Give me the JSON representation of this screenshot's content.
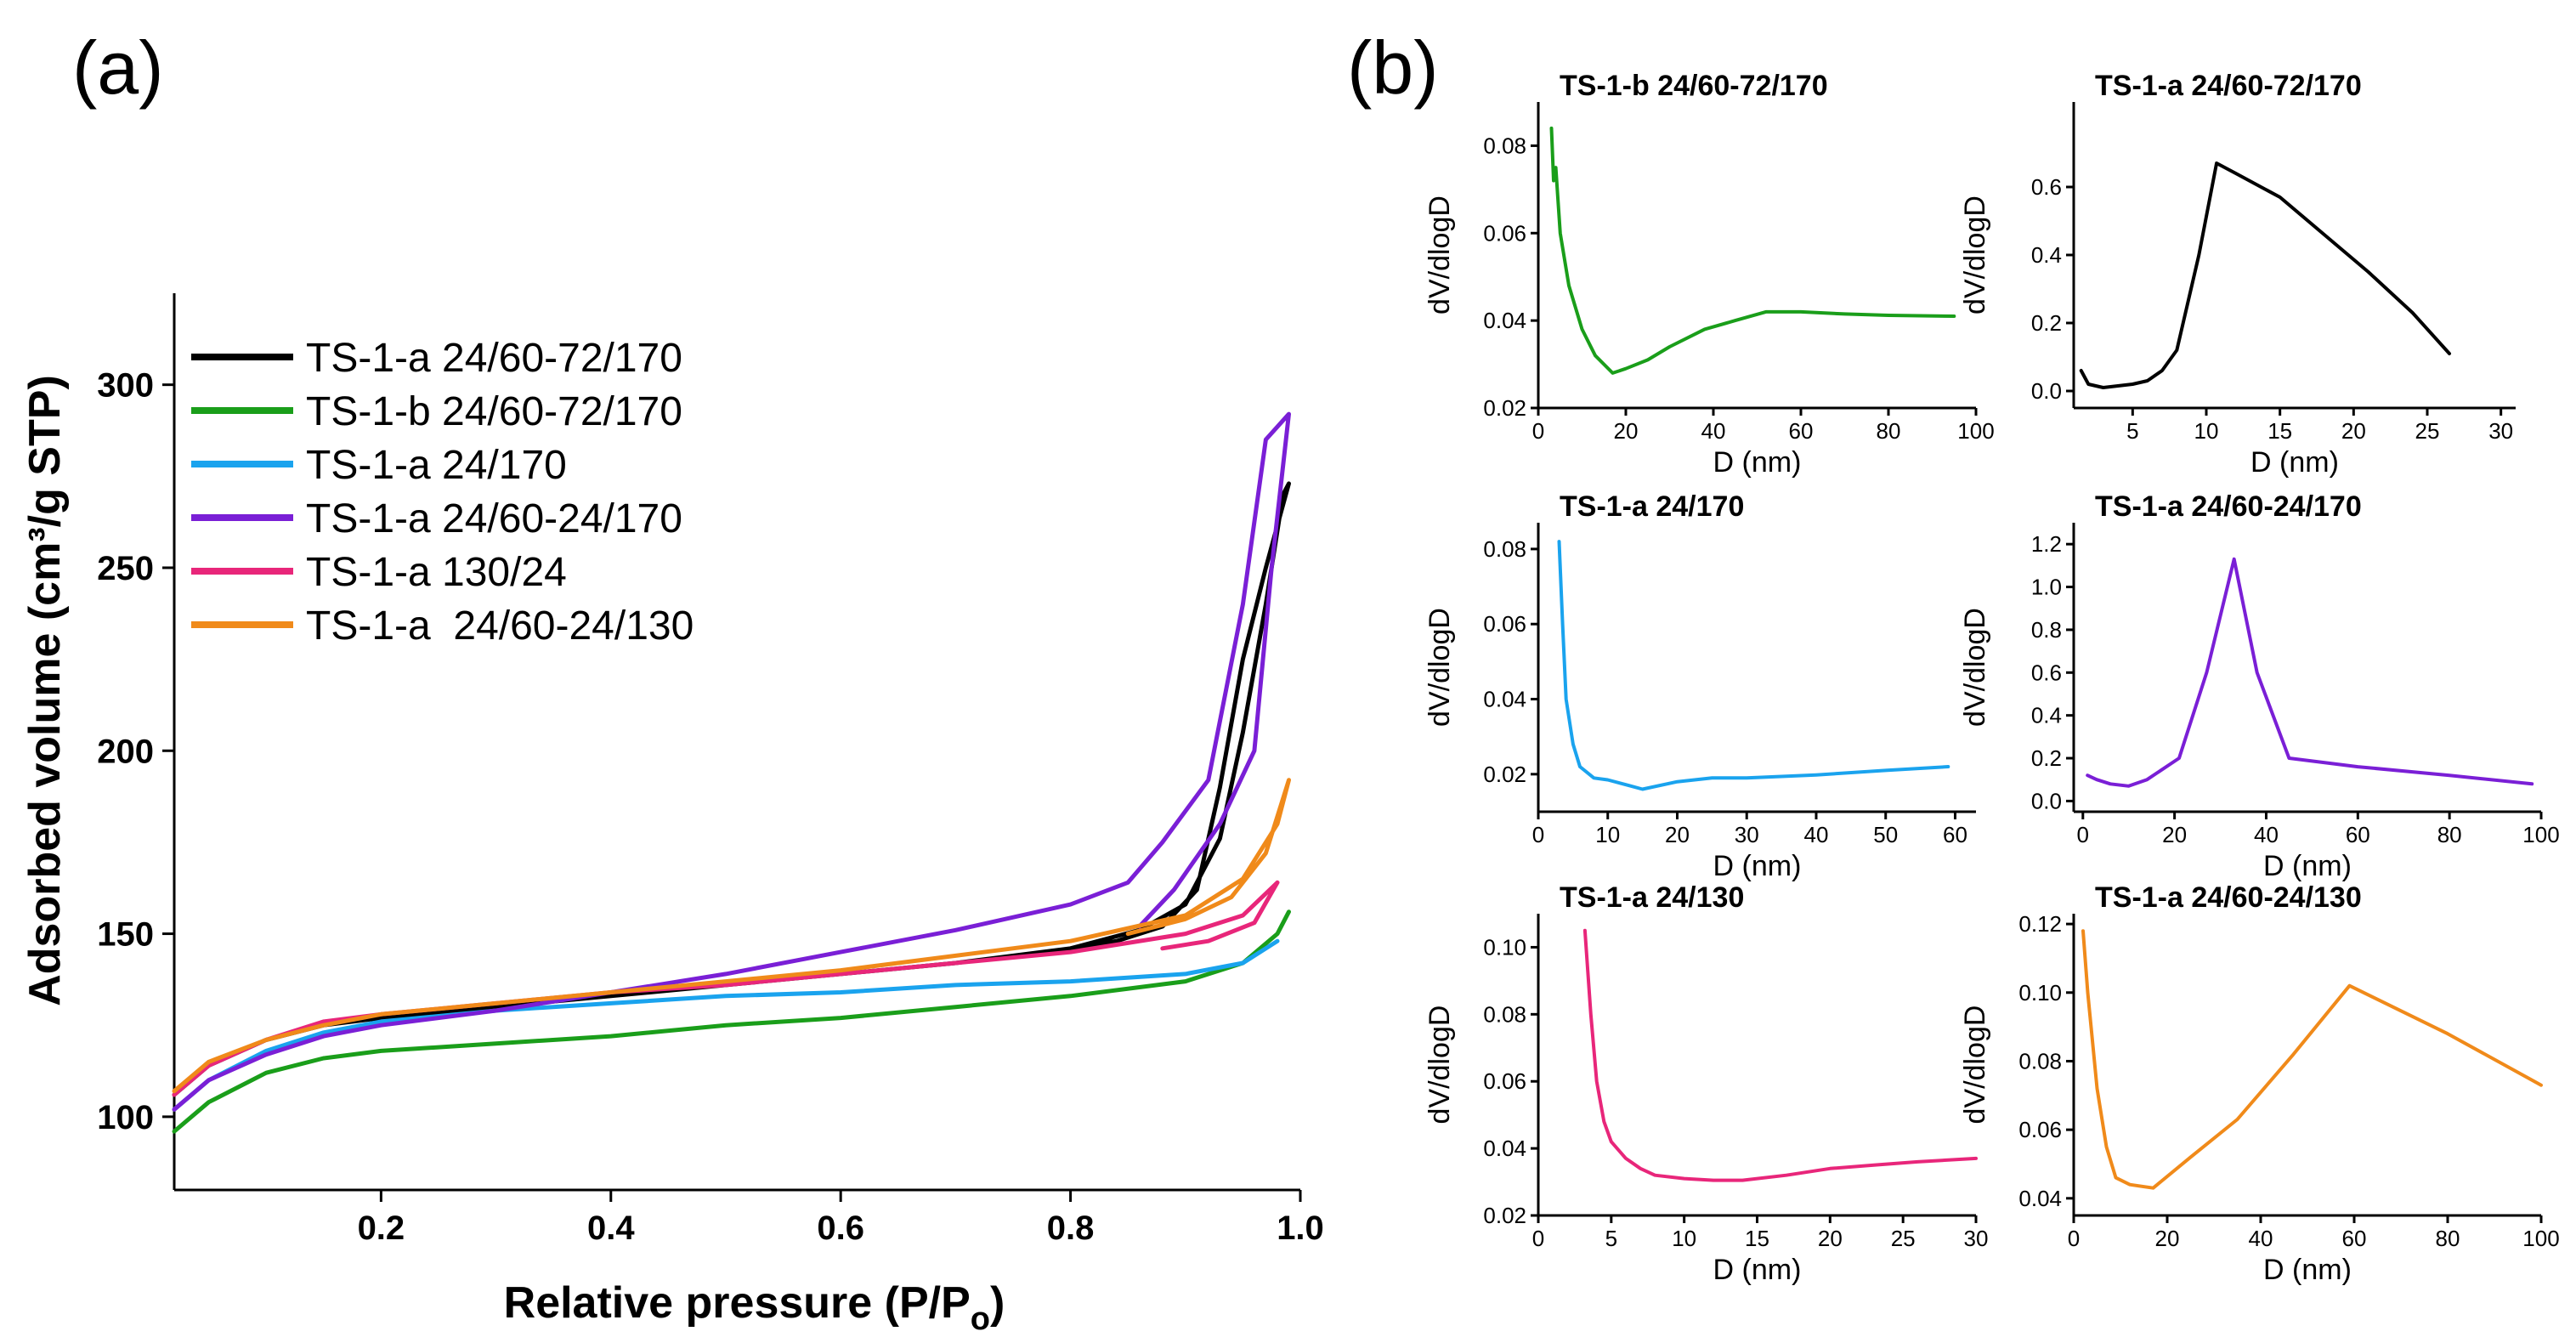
{
  "figure": {
    "panel_a_label": "(a)",
    "panel_b_label": "(b)"
  },
  "colors": {
    "TS-1-a 24/60-72/170": "#000000",
    "TS-1-b 24/60-72/170": "#1a9e1a",
    "TS-1-a 24/170": "#1aa3ee",
    "TS-1-a 24/60-24/170": "#7a1fd6",
    "TS-1-a 130/24": "#e8267a",
    "TS-1-a 24/60-24/130": "#f08a1a"
  },
  "chart_data": [
    {
      "id": "isotherms",
      "type": "line",
      "title": "",
      "xlabel": "Relative pressure (P/P",
      "xlabel_sub": "o",
      "xlabel_close": ")",
      "ylabel": "Adsorbed volume (cm³/g STP)",
      "xlim": [
        0.02,
        1.0
      ],
      "ylim": [
        80,
        325
      ],
      "xticks": [
        0.2,
        0.4,
        0.6,
        0.8,
        1.0
      ],
      "xtick_labels": [
        "0.2",
        "0.4",
        "0.6",
        "0.8",
        "1.0"
      ],
      "yticks": [
        100,
        150,
        200,
        250,
        300
      ],
      "ytick_labels": [
        "100",
        "150",
        "200",
        "250",
        "300"
      ],
      "legend_position": "top-left",
      "series": [
        {
          "name": "TS-1-a 24/60-72/170",
          "color": "#000000",
          "points": [
            [
              0.02,
              106
            ],
            [
              0.05,
              114
            ],
            [
              0.1,
              121
            ],
            [
              0.15,
              125
            ],
            [
              0.2,
              127
            ],
            [
              0.3,
              130
            ],
            [
              0.4,
              133
            ],
            [
              0.5,
              136
            ],
            [
              0.6,
              139
            ],
            [
              0.7,
              142
            ],
            [
              0.8,
              146
            ],
            [
              0.86,
              151
            ],
            [
              0.9,
              158
            ],
            [
              0.93,
              176
            ],
            [
              0.95,
              205
            ],
            [
              0.97,
              240
            ],
            [
              0.985,
              270
            ],
            [
              0.99,
              273
            ],
            [
              0.97,
              250
            ],
            [
              0.95,
              225
            ],
            [
              0.93,
              190
            ],
            [
              0.91,
              162
            ],
            [
              0.88,
              152
            ],
            [
              0.84,
              148
            ],
            [
              0.8,
              146
            ]
          ]
        },
        {
          "name": "TS-1-b 24/60-72/170",
          "color": "#1a9e1a",
          "points": [
            [
              0.02,
              96
            ],
            [
              0.05,
              104
            ],
            [
              0.1,
              112
            ],
            [
              0.15,
              116
            ],
            [
              0.2,
              118
            ],
            [
              0.3,
              120
            ],
            [
              0.4,
              122
            ],
            [
              0.5,
              125
            ],
            [
              0.6,
              127
            ],
            [
              0.7,
              130
            ],
            [
              0.8,
              133
            ],
            [
              0.9,
              137
            ],
            [
              0.95,
              142
            ],
            [
              0.98,
              150
            ],
            [
              0.99,
              156
            ]
          ]
        },
        {
          "name": "TS-1-a 24/170",
          "color": "#1aa3ee",
          "points": [
            [
              0.02,
              102
            ],
            [
              0.05,
              110
            ],
            [
              0.1,
              118
            ],
            [
              0.15,
              123
            ],
            [
              0.2,
              126
            ],
            [
              0.3,
              129
            ],
            [
              0.4,
              131
            ],
            [
              0.5,
              133
            ],
            [
              0.6,
              134
            ],
            [
              0.7,
              136
            ],
            [
              0.8,
              137
            ],
            [
              0.9,
              139
            ],
            [
              0.95,
              142
            ],
            [
              0.98,
              148
            ]
          ]
        },
        {
          "name": "TS-1-a 24/60-24/170",
          "color": "#7a1fd6",
          "points": [
            [
              0.02,
              102
            ],
            [
              0.05,
              110
            ],
            [
              0.1,
              117
            ],
            [
              0.15,
              122
            ],
            [
              0.2,
              125
            ],
            [
              0.3,
              129
            ],
            [
              0.4,
              134
            ],
            [
              0.5,
              139
            ],
            [
              0.6,
              145
            ],
            [
              0.7,
              151
            ],
            [
              0.8,
              158
            ],
            [
              0.85,
              164
            ],
            [
              0.88,
              175
            ],
            [
              0.92,
              192
            ],
            [
              0.95,
              240
            ],
            [
              0.97,
              285
            ],
            [
              0.99,
              292
            ],
            [
              0.975,
              250
            ],
            [
              0.96,
              200
            ],
            [
              0.93,
              180
            ],
            [
              0.89,
              162
            ],
            [
              0.86,
              152
            ]
          ]
        },
        {
          "name": "TS-1-a 130/24",
          "color": "#e8267a",
          "points": [
            [
              0.02,
              106
            ],
            [
              0.05,
              114
            ],
            [
              0.1,
              121
            ],
            [
              0.15,
              126
            ],
            [
              0.2,
              128
            ],
            [
              0.3,
              131
            ],
            [
              0.4,
              134
            ],
            [
              0.5,
              136
            ],
            [
              0.6,
              139
            ],
            [
              0.7,
              142
            ],
            [
              0.8,
              145
            ],
            [
              0.9,
              150
            ],
            [
              0.95,
              155
            ],
            [
              0.98,
              164
            ],
            [
              0.96,
              153
            ],
            [
              0.92,
              148
            ],
            [
              0.88,
              146
            ]
          ]
        },
        {
          "name": "TS-1-a  24/60-24/130",
          "color": "#f08a1a",
          "points": [
            [
              0.02,
              107
            ],
            [
              0.05,
              115
            ],
            [
              0.1,
              121
            ],
            [
              0.15,
              125
            ],
            [
              0.2,
              128
            ],
            [
              0.3,
              131
            ],
            [
              0.4,
              134
            ],
            [
              0.5,
              137
            ],
            [
              0.6,
              140
            ],
            [
              0.7,
              144
            ],
            [
              0.8,
              148
            ],
            [
              0.9,
              155
            ],
            [
              0.95,
              165
            ],
            [
              0.98,
              180
            ],
            [
              0.99,
              192
            ],
            [
              0.97,
              172
            ],
            [
              0.94,
              160
            ],
            [
              0.9,
              154
            ],
            [
              0.85,
              150
            ]
          ]
        }
      ]
    },
    {
      "id": "psd-1",
      "type": "line",
      "title": "TS-1-b 24/60-72/170",
      "xlabel": "D (nm)",
      "ylabel": "dV/dlogD",
      "color": "#1a9e1a",
      "xlim": [
        0,
        100
      ],
      "ylim": [
        0.02,
        0.09
      ],
      "xticks": [
        0,
        20,
        40,
        60,
        80,
        100
      ],
      "xtick_labels": [
        "0",
        "20",
        "40",
        "60",
        "80",
        "100"
      ],
      "yticks": [
        0.02,
        0.04,
        0.06,
        0.08
      ],
      "ytick_labels": [
        "0.02",
        "0.04",
        "0.06",
        "0.08"
      ],
      "points": [
        [
          3,
          0.084
        ],
        [
          3.5,
          0.072
        ],
        [
          4,
          0.075
        ],
        [
          5,
          0.06
        ],
        [
          7,
          0.048
        ],
        [
          10,
          0.038
        ],
        [
          13,
          0.032
        ],
        [
          17,
          0.028
        ],
        [
          20,
          0.029
        ],
        [
          25,
          0.031
        ],
        [
          30,
          0.034
        ],
        [
          38,
          0.038
        ],
        [
          45,
          0.04
        ],
        [
          52,
          0.042
        ],
        [
          60,
          0.042
        ],
        [
          70,
          0.0415
        ],
        [
          80,
          0.0412
        ],
        [
          95,
          0.041
        ]
      ]
    },
    {
      "id": "psd-2",
      "type": "line",
      "title": "TS-1-a 24/60-72/170",
      "xlabel": "D (nm)",
      "ylabel": "dV/dlogD",
      "color": "#000000",
      "xlim": [
        1,
        31
      ],
      "ylim": [
        -0.05,
        0.85
      ],
      "xticks": [
        5,
        10,
        15,
        20,
        25,
        30
      ],
      "xtick_labels": [
        "5",
        "10",
        "15",
        "20",
        "25",
        "30"
      ],
      "yticks": [
        0.0,
        0.2,
        0.4,
        0.6
      ],
      "ytick_labels": [
        "0.0",
        "0.2",
        "0.4",
        "0.6"
      ],
      "points": [
        [
          1.5,
          0.06
        ],
        [
          2,
          0.02
        ],
        [
          3,
          0.01
        ],
        [
          4,
          0.015
        ],
        [
          5,
          0.02
        ],
        [
          6,
          0.03
        ],
        [
          7,
          0.06
        ],
        [
          8,
          0.12
        ],
        [
          9.5,
          0.4
        ],
        [
          10.7,
          0.67
        ],
        [
          12,
          0.64
        ],
        [
          15,
          0.57
        ],
        [
          18,
          0.46
        ],
        [
          21,
          0.35
        ],
        [
          24,
          0.23
        ],
        [
          26.5,
          0.11
        ]
      ]
    },
    {
      "id": "psd-3",
      "type": "line",
      "title": "TS-1-a 24/170",
      "xlabel": "D (nm)",
      "ylabel": "dV/dlogD",
      "color": "#1aa3ee",
      "xlim": [
        0,
        63
      ],
      "ylim": [
        0.01,
        0.087
      ],
      "xticks": [
        0,
        10,
        20,
        30,
        40,
        50,
        60
      ],
      "xtick_labels": [
        "0",
        "10",
        "20",
        "30",
        "40",
        "50",
        "60"
      ],
      "yticks": [
        0.02,
        0.04,
        0.06,
        0.08
      ],
      "ytick_labels": [
        "0.02",
        "0.04",
        "0.06",
        "0.08"
      ],
      "points": [
        [
          3,
          0.082
        ],
        [
          3.5,
          0.06
        ],
        [
          4,
          0.04
        ],
        [
          5,
          0.028
        ],
        [
          6,
          0.022
        ],
        [
          8,
          0.019
        ],
        [
          10,
          0.0185
        ],
        [
          13,
          0.017
        ],
        [
          15,
          0.016
        ],
        [
          20,
          0.018
        ],
        [
          25,
          0.019
        ],
        [
          30,
          0.019
        ],
        [
          40,
          0.0198
        ],
        [
          50,
          0.021
        ],
        [
          59,
          0.022
        ]
      ]
    },
    {
      "id": "psd-4",
      "type": "line",
      "title": "TS-1-a 24/60-24/170",
      "xlabel": "D (nm)",
      "ylabel": "dV/dlogD",
      "color": "#7a1fd6",
      "xlim": [
        -2,
        100
      ],
      "ylim": [
        -0.05,
        1.3
      ],
      "xticks": [
        0,
        20,
        40,
        60,
        80,
        100
      ],
      "xtick_labels": [
        "0",
        "20",
        "40",
        "60",
        "80",
        "100"
      ],
      "yticks": [
        0.0,
        0.2,
        0.4,
        0.6,
        0.8,
        1.0,
        1.2
      ],
      "ytick_labels": [
        "0.0",
        "0.2",
        "0.4",
        "0.6",
        "0.8",
        "1.0",
        "1.2"
      ],
      "points": [
        [
          1,
          0.12
        ],
        [
          3,
          0.1
        ],
        [
          6,
          0.08
        ],
        [
          10,
          0.07
        ],
        [
          14,
          0.1
        ],
        [
          21,
          0.2
        ],
        [
          27,
          0.6
        ],
        [
          33,
          1.13
        ],
        [
          38,
          0.6
        ],
        [
          45,
          0.2
        ],
        [
          60,
          0.16
        ],
        [
          80,
          0.12
        ],
        [
          98,
          0.08
        ]
      ]
    },
    {
      "id": "psd-5",
      "type": "line",
      "title": "TS-1-a 24/130",
      "xlabel": "D (nm)",
      "ylabel": "dV/dlogD",
      "color": "#e8267a",
      "xlim": [
        0,
        30
      ],
      "ylim": [
        0.02,
        0.11
      ],
      "xticks": [
        0,
        5,
        10,
        15,
        20,
        25,
        30
      ],
      "xtick_labels": [
        "0",
        "5",
        "10",
        "15",
        "20",
        "25",
        "30"
      ],
      "yticks": [
        0.02,
        0.04,
        0.06,
        0.08,
        0.1
      ],
      "ytick_labels": [
        "0.02",
        "0.04",
        "0.06",
        "0.08",
        "0.10"
      ],
      "points": [
        [
          3.2,
          0.105
        ],
        [
          3.6,
          0.08
        ],
        [
          4,
          0.06
        ],
        [
          4.5,
          0.048
        ],
        [
          5,
          0.042
        ],
        [
          6,
          0.037
        ],
        [
          7,
          0.034
        ],
        [
          8,
          0.032
        ],
        [
          10,
          0.031
        ],
        [
          12,
          0.0305
        ],
        [
          14,
          0.0305
        ],
        [
          17,
          0.032
        ],
        [
          20,
          0.034
        ],
        [
          23,
          0.035
        ],
        [
          26,
          0.036
        ],
        [
          30,
          0.037
        ]
      ]
    },
    {
      "id": "psd-6",
      "type": "line",
      "title": "TS-1-a 24/60-24/130",
      "xlabel": "D (nm)",
      "ylabel": "dV/dlogD",
      "color": "#f08a1a",
      "xlim": [
        0,
        100
      ],
      "ylim": [
        0.035,
        0.123
      ],
      "xticks": [
        0,
        20,
        40,
        60,
        80,
        100
      ],
      "xtick_labels": [
        "0",
        "20",
        "40",
        "60",
        "80",
        "100"
      ],
      "yticks": [
        0.04,
        0.06,
        0.08,
        0.1,
        0.12
      ],
      "ytick_labels": [
        "0.04",
        "0.06",
        "0.08",
        "0.10",
        "0.12"
      ],
      "points": [
        [
          2,
          0.118
        ],
        [
          3,
          0.1
        ],
        [
          5,
          0.072
        ],
        [
          7,
          0.055
        ],
        [
          9,
          0.046
        ],
        [
          12,
          0.044
        ],
        [
          17,
          0.043
        ],
        [
          25,
          0.052
        ],
        [
          35,
          0.063
        ],
        [
          47,
          0.082
        ],
        [
          59,
          0.102
        ],
        [
          80,
          0.088
        ],
        [
          100,
          0.073
        ]
      ]
    }
  ]
}
